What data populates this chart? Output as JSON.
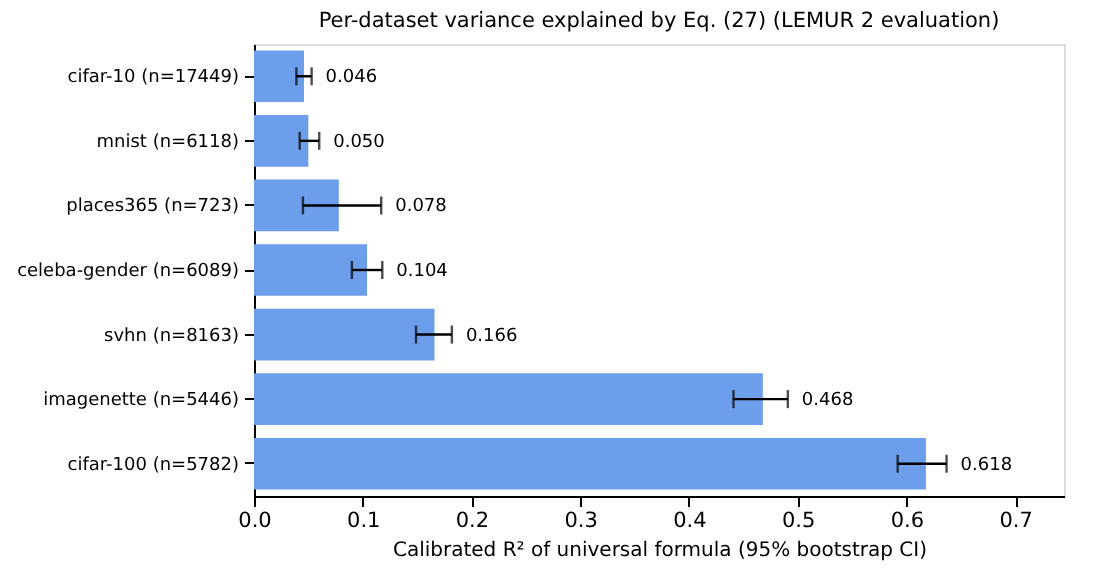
{
  "chart_data": {
    "type": "bar",
    "orientation": "horizontal",
    "title": "Per-dataset variance explained by Eq. (27) (LEMUR 2 evaluation)",
    "xlabel": "Calibrated R² of universal formula (95% bootstrap CI)",
    "categories": [
      "cifar-10  (n=17449)",
      "mnist  (n=6118)",
      "places365  (n=723)",
      "celeba-gender  (n=6089)",
      "svhn  (n=8163)",
      "imagenette  (n=5446)",
      "cifar-100  (n=5782)"
    ],
    "values": [
      0.046,
      0.05,
      0.078,
      0.104,
      0.166,
      0.468,
      0.618
    ],
    "value_labels": [
      "0.046",
      "0.050",
      "0.078",
      "0.104",
      "0.166",
      "0.468",
      "0.618"
    ],
    "errors": [
      [
        0.039,
        0.053
      ],
      [
        0.042,
        0.06
      ],
      [
        0.045,
        0.117
      ],
      [
        0.09,
        0.118
      ],
      [
        0.149,
        0.182
      ],
      [
        0.441,
        0.491
      ],
      [
        0.592,
        0.637
      ]
    ],
    "color": "#6d9eeb",
    "grid": false,
    "xlim": [
      0,
      0.745
    ],
    "xticks": [
      {
        "value": 0,
        "label": "0.0"
      },
      {
        "value": 0.1,
        "label": "0.1"
      },
      {
        "value": 0.2,
        "label": "0.2"
      },
      {
        "value": 0.3,
        "label": "0.3"
      },
      {
        "value": 0.4,
        "label": "0.4"
      },
      {
        "value": 0.5,
        "label": "0.5"
      },
      {
        "value": 0.6,
        "label": "0.6"
      },
      {
        "value": 0.7,
        "label": "0.7"
      }
    ]
  }
}
